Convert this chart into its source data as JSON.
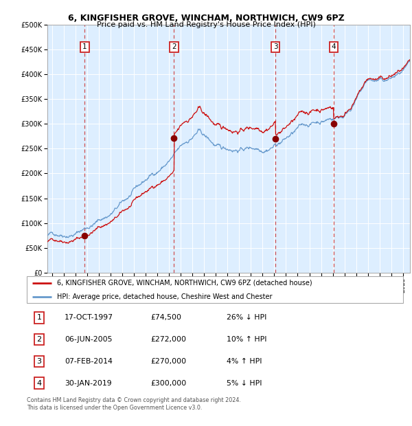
{
  "title": "6, KINGFISHER GROVE, WINCHAM, NORTHWICH, CW9 6PZ",
  "subtitle": "Price paid vs. HM Land Registry's House Price Index (HPI)",
  "legend_line1": "6, KINGFISHER GROVE, WINCHAM, NORTHWICH, CW9 6PZ (detached house)",
  "legend_line2": "HPI: Average price, detached house, Cheshire West and Chester",
  "footnote1": "Contains HM Land Registry data © Crown copyright and database right 2024.",
  "footnote2": "This data is licensed under the Open Government Licence v3.0.",
  "table_rows": [
    [
      "1",
      "17-OCT-1997",
      "£74,500",
      "26% ↓ HPI"
    ],
    [
      "2",
      "06-JUN-2005",
      "£272,000",
      "10% ↑ HPI"
    ],
    [
      "3",
      "07-FEB-2014",
      "£270,000",
      "4% ↑ HPI"
    ],
    [
      "4",
      "30-JAN-2019",
      "£300,000",
      "5% ↓ HPI"
    ]
  ],
  "sale_years": [
    1997.79,
    2005.43,
    2014.1,
    2019.08
  ],
  "sale_prices": [
    74500,
    272000,
    270000,
    300000
  ],
  "hpi_color": "#6699cc",
  "price_color": "#cc1111",
  "dot_color": "#880000",
  "vline_color": "#cc3333",
  "plot_bg": "#ddeeff",
  "ylim": [
    0,
    500000
  ],
  "yticks": [
    0,
    50000,
    100000,
    150000,
    200000,
    250000,
    300000,
    350000,
    400000,
    450000,
    500000
  ],
  "xlim_start": 1994.6,
  "xlim_end": 2025.6,
  "xticks": [
    1995,
    1996,
    1997,
    1998,
    1999,
    2000,
    2001,
    2002,
    2003,
    2004,
    2005,
    2006,
    2007,
    2008,
    2009,
    2010,
    2011,
    2012,
    2013,
    2014,
    2015,
    2016,
    2017,
    2018,
    2019,
    2020,
    2021,
    2022,
    2023,
    2024,
    2025
  ]
}
